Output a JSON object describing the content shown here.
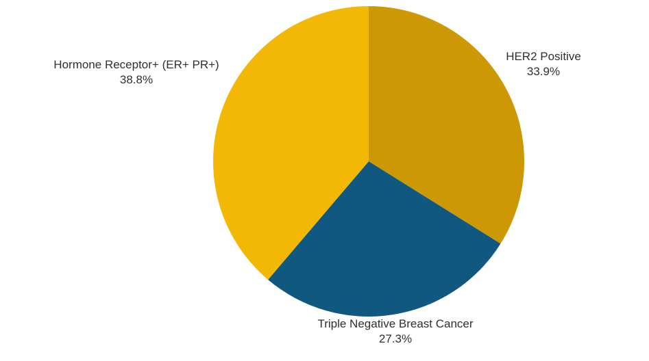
{
  "figure": {
    "background": "#ffffff"
  },
  "chart_data": {
    "type": "pie",
    "title": "",
    "start_angle_deg": 0,
    "direction": "clockwise",
    "labels_position": "outside",
    "text_color": "#2f2f2f",
    "slices": [
      {
        "label": "HER2 Positive",
        "value": 33.9,
        "pct_label": "33.9%",
        "color": "#CC9803"
      },
      {
        "label": "Triple Negative Breast Cancer",
        "value": 27.3,
        "pct_label": "27.3%",
        "color": "#115880"
      },
      {
        "label": "Hormone Receptor+ (ER+ PR+)",
        "value": 38.8,
        "pct_label": "38.8%",
        "color": "#F3B705"
      }
    ]
  }
}
